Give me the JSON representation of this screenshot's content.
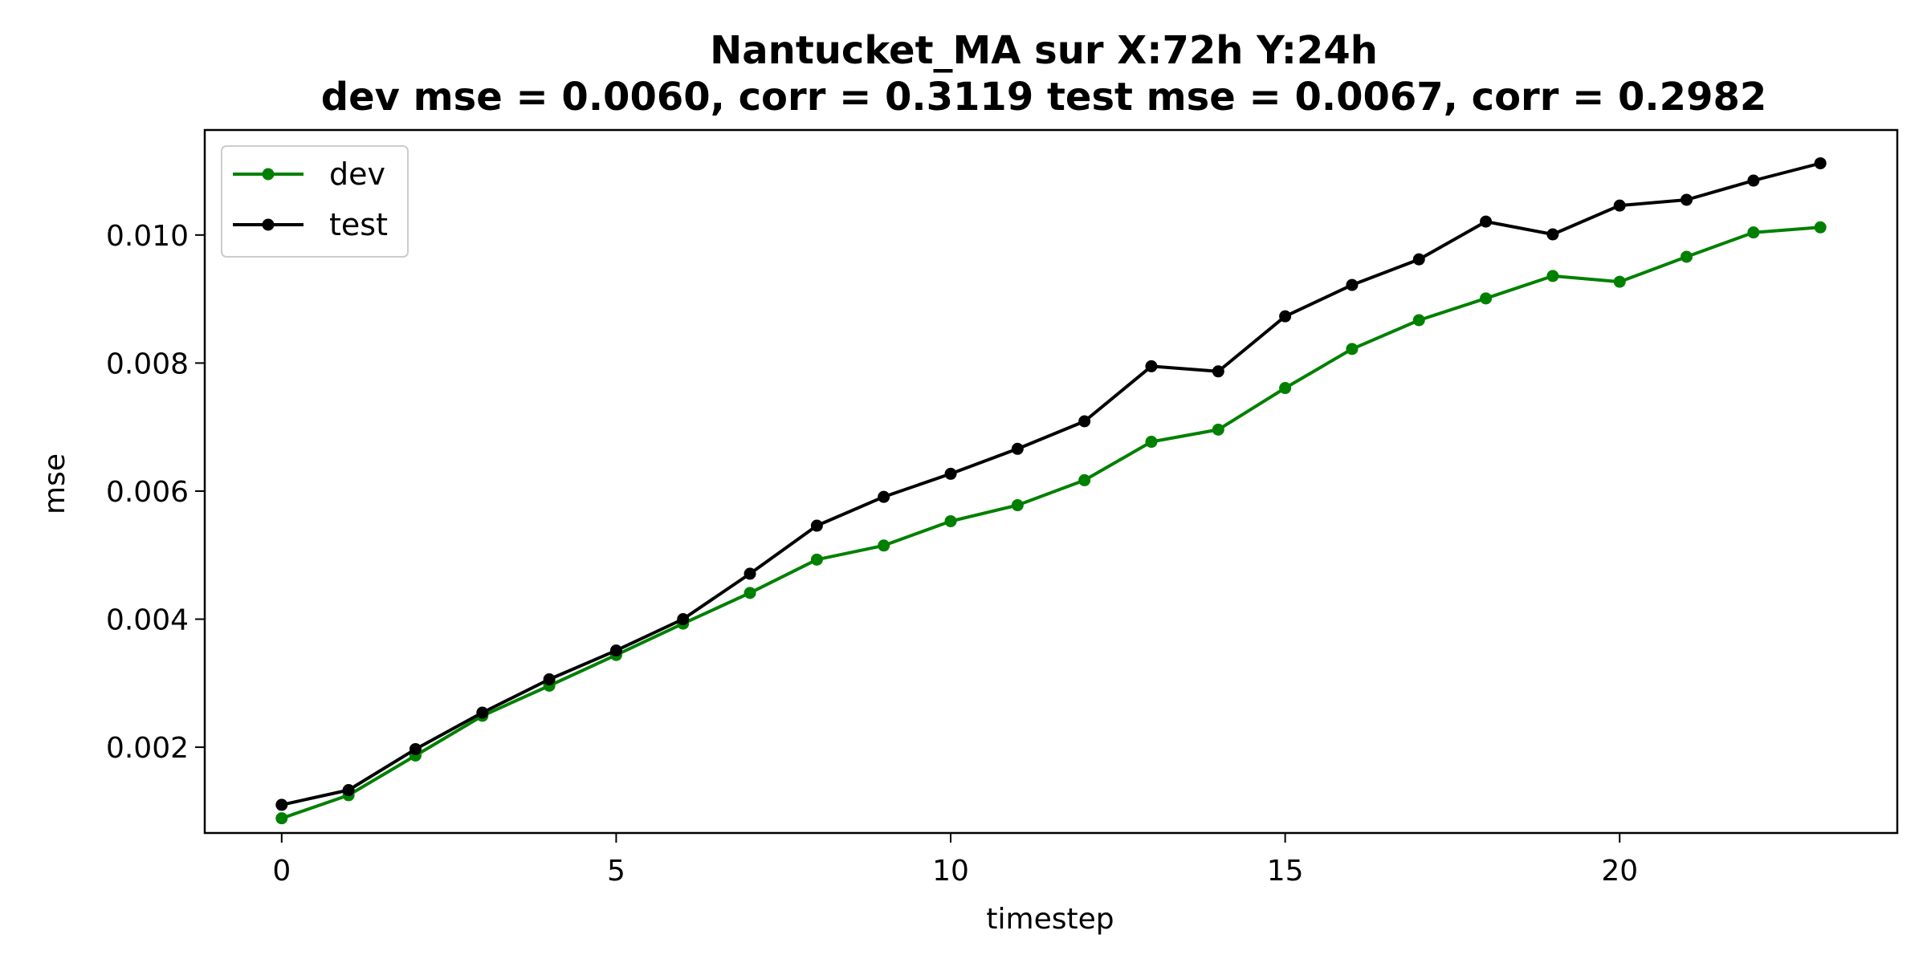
{
  "chart_data": {
    "type": "line",
    "title": "Nantucket_MA   sur   X:72h   Y:24h",
    "subtitle": "dev mse = 0.0060, corr = 0.3119   test mse = 0.0067, corr = 0.2982",
    "xlabel": "timestep",
    "ylabel": "mse",
    "xlim": [
      -1.15,
      24.15
    ],
    "ylim": [
      0.00066,
      0.01164
    ],
    "xticks": [
      0,
      5,
      10,
      15,
      20
    ],
    "xtick_labels": [
      "0",
      "5",
      "10",
      "15",
      "20"
    ],
    "yticks": [
      0.002,
      0.004,
      0.006,
      0.008,
      0.01
    ],
    "ytick_labels": [
      "0.002",
      "0.004",
      "0.006",
      "0.008",
      "0.010"
    ],
    "grid": false,
    "legend_position": "top-left",
    "x": [
      0,
      1,
      2,
      3,
      4,
      5,
      6,
      7,
      8,
      9,
      10,
      11,
      12,
      13,
      14,
      15,
      16,
      17,
      18,
      19,
      20,
      21,
      22,
      23
    ],
    "series": [
      {
        "name": "dev",
        "color": "#008000",
        "values": [
          0.00089,
          0.00125,
          0.00187,
          0.00249,
          0.00296,
          0.00344,
          0.00393,
          0.00441,
          0.00493,
          0.00515,
          0.00553,
          0.00578,
          0.00617,
          0.00677,
          0.00696,
          0.00761,
          0.00822,
          0.00867,
          0.00901,
          0.00936,
          0.00927,
          0.00966,
          0.01004,
          0.01012
        ]
      },
      {
        "name": "test",
        "color": "#000000",
        "values": [
          0.0011,
          0.00133,
          0.00197,
          0.00254,
          0.00306,
          0.00351,
          0.004,
          0.00471,
          0.00546,
          0.00591,
          0.00627,
          0.00666,
          0.00709,
          0.00795,
          0.00787,
          0.00873,
          0.00922,
          0.00962,
          0.01021,
          0.01001,
          0.01046,
          0.01055,
          0.01085,
          0.01112
        ]
      }
    ]
  }
}
